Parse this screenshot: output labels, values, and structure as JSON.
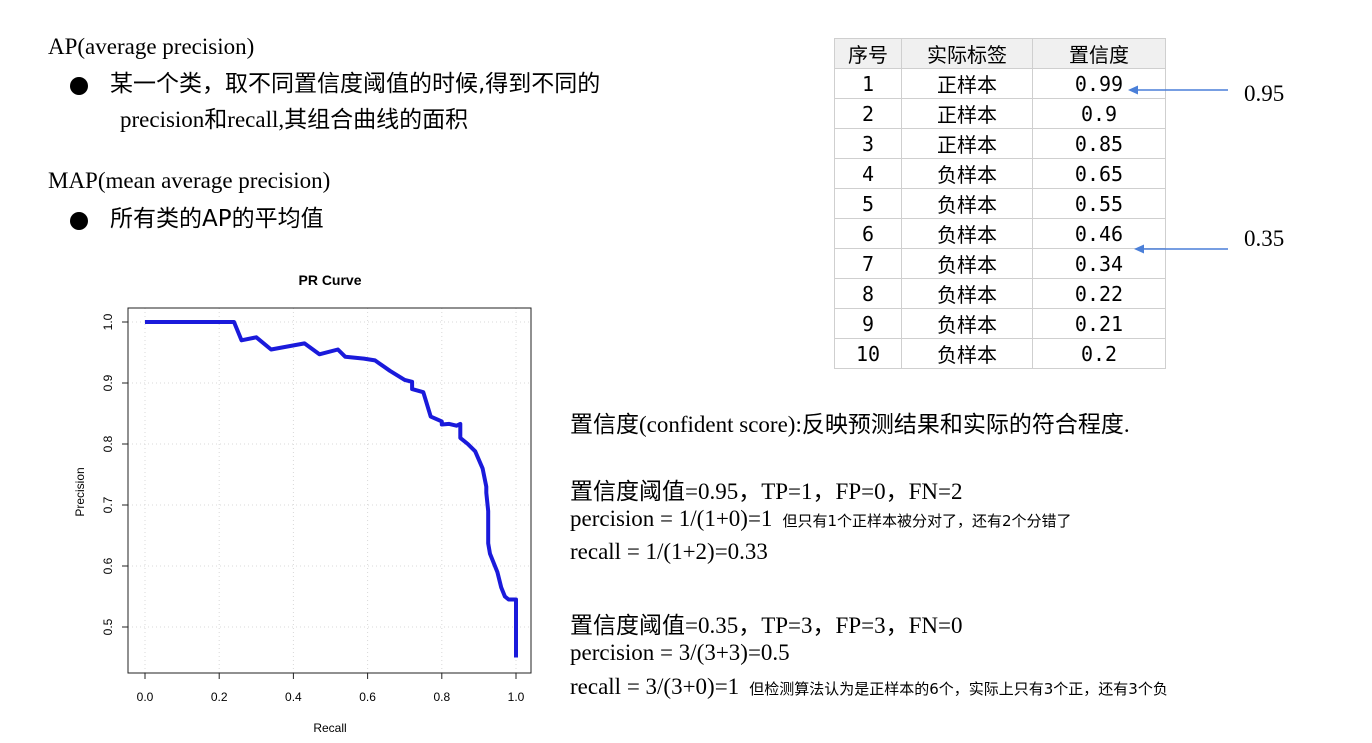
{
  "ap": {
    "heading": "AP(average precision)",
    "bullet_line1": "某一个类，取不同置信度阈值的时候,得到不同的",
    "bullet_line2": "precision和recall,其组合曲线的面积"
  },
  "map": {
    "heading": "MAP(mean average precision)",
    "bullet": "所有类的AP的平均值"
  },
  "table": {
    "headers": [
      "序号",
      "实际标签",
      "置信度"
    ],
    "rows": [
      [
        "1",
        "正样本",
        "0.99"
      ],
      [
        "2",
        "正样本",
        "0.9"
      ],
      [
        "3",
        "正样本",
        "0.85"
      ],
      [
        "4",
        "负样本",
        "0.65"
      ],
      [
        "5",
        "负样本",
        "0.55"
      ],
      [
        "6",
        "负样本",
        "0.46"
      ],
      [
        "7",
        "负样本",
        "0.34"
      ],
      [
        "8",
        "负样本",
        "0.22"
      ],
      [
        "9",
        "负样本",
        "0.21"
      ],
      [
        "10",
        "负样本",
        "0.2"
      ]
    ]
  },
  "thresholds": [
    "0.95",
    "0.35"
  ],
  "colors": {
    "curve": "#1a1adb",
    "arrow": "#4a7fd8"
  },
  "definition": "置信度(confident score):反映预测结果和实际的符合程度.",
  "case1": {
    "title": "置信度阈值=0.95，TP=1，FP=0，FN=2",
    "precision": "percision = 1/(1+0)=1",
    "precision_note": "但只有1个正样本被分对了，还有2个分错了",
    "recall": "recall = 1/(1+2)=0.33"
  },
  "case2": {
    "title": "置信度阈值=0.35，TP=3，FP=3，FN=0",
    "precision": "percision = 3/(3+3)=0.5",
    "recall": "recall = 3/(3+0)=1",
    "recall_note": "但检测算法认为是正样本的6个，实际上只有3个正，还有3个负"
  },
  "chart_data": {
    "type": "line",
    "title": "PR Curve",
    "xlabel": "Recall",
    "ylabel": "Precision",
    "xlim": [
      0.0,
      1.0
    ],
    "ylim": [
      0.45,
      1.0
    ],
    "xticks": [
      "0.0",
      "0.2",
      "0.4",
      "0.6",
      "0.8",
      "1.0"
    ],
    "yticks": [
      "0.5",
      "0.6",
      "0.7",
      "0.8",
      "0.9",
      "1.0"
    ],
    "grid": true,
    "series": [
      {
        "x": [
          0.0,
          0.24,
          0.26,
          0.3,
          0.34,
          0.43,
          0.47,
          0.52,
          0.54,
          0.59,
          0.62,
          0.66,
          0.7,
          0.72,
          0.72,
          0.75,
          0.77,
          0.8,
          0.8,
          0.82,
          0.84,
          0.85,
          0.85,
          0.87,
          0.89,
          0.91,
          0.92,
          0.92,
          0.925,
          0.925,
          0.93,
          0.95,
          0.96,
          0.97,
          0.98,
          1.0,
          1.0
        ],
        "y": [
          1.0,
          1.0,
          0.97,
          0.975,
          0.955,
          0.965,
          0.947,
          0.955,
          0.943,
          0.94,
          0.937,
          0.92,
          0.905,
          0.902,
          0.89,
          0.885,
          0.845,
          0.837,
          0.832,
          0.833,
          0.83,
          0.833,
          0.81,
          0.8,
          0.788,
          0.76,
          0.73,
          0.72,
          0.69,
          0.637,
          0.62,
          0.59,
          0.565,
          0.55,
          0.545,
          0.545,
          0.45
        ]
      }
    ]
  }
}
